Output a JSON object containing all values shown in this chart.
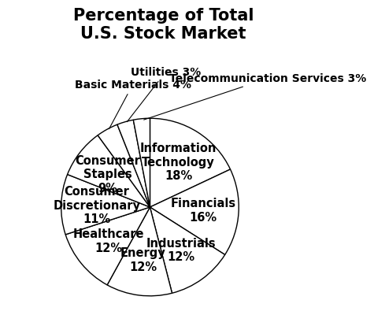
{
  "title": "Percentage of Total\nU.S. Stock Market",
  "slices": [
    {
      "label": "Information\nTechnology\n18%",
      "value": 18,
      "outside": false
    },
    {
      "label": "Financials\n16%",
      "value": 16,
      "outside": false
    },
    {
      "label": "Industrials\n12%",
      "value": 12,
      "outside": false
    },
    {
      "label": "Energy\n12%",
      "value": 12,
      "outside": false
    },
    {
      "label": "Healthcare\n12%",
      "value": 12,
      "outside": false
    },
    {
      "label": "Consumer\nDiscretionary\n11%",
      "value": 11,
      "outside": false
    },
    {
      "label": "Consumer\nStaples\n9%",
      "value": 9,
      "outside": false
    },
    {
      "label": "Basic Materials 4%",
      "value": 4,
      "outside": true
    },
    {
      "label": "Utilities 3%",
      "value": 3,
      "outside": true
    },
    {
      "label": "Telecommunication Services 3%",
      "value": 3,
      "outside": true
    }
  ],
  "pie_color": "#ffffff",
  "edge_color": "#000000",
  "title_fontsize": 15,
  "label_fontsize": 10.5,
  "outside_label_fontsize": 10,
  "background_color": "#ffffff"
}
